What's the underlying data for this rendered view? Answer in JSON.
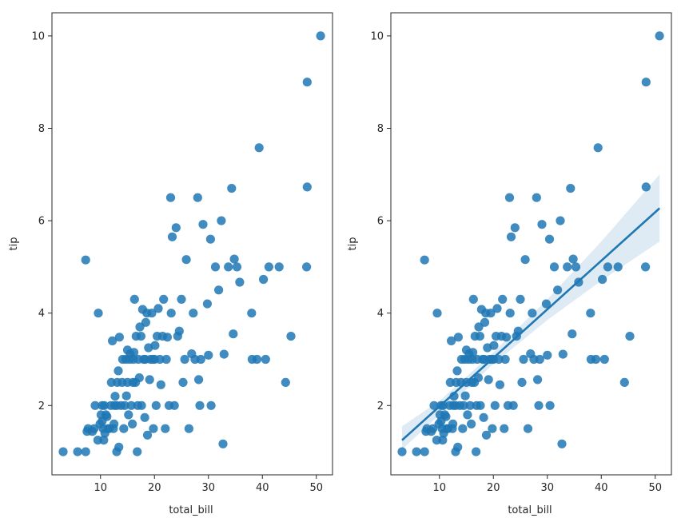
{
  "chart_data": [
    {
      "type": "scatter",
      "name": "left-panel",
      "xlabel": "total_bill",
      "ylabel": "tip",
      "xlim": [
        1.0,
        53.0
      ],
      "ylim": [
        0.5,
        10.5
      ],
      "xticks": [
        "10",
        "20",
        "30",
        "40",
        "50"
      ],
      "yticks": [
        "2",
        "4",
        "6",
        "8",
        "10"
      ],
      "grid": false,
      "regression": false,
      "points": [
        [
          3.07,
          1.0
        ],
        [
          5.75,
          1.0
        ],
        [
          7.25,
          1.0
        ],
        [
          7.25,
          5.15
        ],
        [
          7.5,
          1.44
        ],
        [
          7.7,
          1.5
        ],
        [
          8.5,
          1.44
        ],
        [
          8.8,
          1.5
        ],
        [
          9.0,
          2.0
        ],
        [
          9.5,
          1.25
        ],
        [
          9.6,
          4.0
        ],
        [
          9.9,
          1.6
        ],
        [
          10.1,
          1.8
        ],
        [
          10.3,
          1.66
        ],
        [
          10.3,
          2.0
        ],
        [
          10.5,
          1.5
        ],
        [
          10.6,
          1.25
        ],
        [
          10.7,
          2.0
        ],
        [
          10.8,
          1.4
        ],
        [
          11.0,
          1.8
        ],
        [
          11.2,
          1.76
        ],
        [
          11.4,
          1.5
        ],
        [
          11.6,
          1.5
        ],
        [
          11.9,
          2.0
        ],
        [
          12.0,
          2.5
        ],
        [
          12.2,
          3.4
        ],
        [
          12.4,
          1.5
        ],
        [
          12.5,
          1.6
        ],
        [
          12.6,
          2.0
        ],
        [
          12.7,
          2.2
        ],
        [
          13.0,
          1.0
        ],
        [
          13.0,
          2.0
        ],
        [
          13.1,
          2.5
        ],
        [
          13.3,
          2.75
        ],
        [
          13.4,
          1.1
        ],
        [
          13.5,
          3.48
        ],
        [
          13.8,
          2.0
        ],
        [
          14.0,
          2.5
        ],
        [
          14.1,
          3.0
        ],
        [
          14.3,
          1.5
        ],
        [
          14.5,
          2.0
        ],
        [
          14.7,
          3.0
        ],
        [
          14.8,
          2.21
        ],
        [
          15.0,
          2.5
        ],
        [
          15.0,
          3.2
        ],
        [
          15.2,
          1.8
        ],
        [
          15.4,
          3.0
        ],
        [
          15.5,
          3.12
        ],
        [
          15.7,
          2.0
        ],
        [
          15.9,
          1.6
        ],
        [
          16.0,
          2.5
        ],
        [
          16.1,
          3.0
        ],
        [
          16.2,
          3.15
        ],
        [
          16.3,
          4.3
        ],
        [
          16.5,
          2.5
        ],
        [
          16.6,
          3.5
        ],
        [
          16.8,
          1.0
        ],
        [
          16.9,
          2.0
        ],
        [
          17.0,
          3.0
        ],
        [
          17.2,
          2.6
        ],
        [
          17.3,
          3.7
        ],
        [
          17.5,
          3.5
        ],
        [
          17.6,
          2.0
        ],
        [
          17.8,
          4.08
        ],
        [
          18.0,
          3.0
        ],
        [
          18.2,
          1.74
        ],
        [
          18.3,
          3.0
        ],
        [
          18.4,
          3.8
        ],
        [
          18.6,
          4.0
        ],
        [
          18.7,
          1.36
        ],
        [
          18.9,
          3.25
        ],
        [
          19.1,
          2.56
        ],
        [
          19.3,
          3.0
        ],
        [
          19.5,
          4.0
        ],
        [
          19.7,
          3.0
        ],
        [
          19.8,
          1.5
        ],
        [
          20.0,
          3.0
        ],
        [
          20.1,
          3.3
        ],
        [
          20.3,
          2.0
        ],
        [
          20.5,
          3.5
        ],
        [
          20.7,
          4.1
        ],
        [
          21.0,
          3.0
        ],
        [
          21.2,
          2.45
        ],
        [
          21.5,
          3.5
        ],
        [
          21.7,
          4.3
        ],
        [
          22.0,
          1.5
        ],
        [
          22.2,
          3.0
        ],
        [
          22.4,
          3.48
        ],
        [
          22.7,
          2.0
        ],
        [
          23.0,
          6.5
        ],
        [
          23.1,
          4.0
        ],
        [
          23.3,
          5.65
        ],
        [
          23.7,
          2.0
        ],
        [
          24.0,
          5.85
        ],
        [
          24.3,
          3.5
        ],
        [
          24.6,
          3.61
        ],
        [
          25.0,
          4.3
        ],
        [
          25.3,
          2.5
        ],
        [
          25.6,
          3.0
        ],
        [
          25.9,
          5.16
        ],
        [
          26.4,
          1.5
        ],
        [
          26.9,
          3.12
        ],
        [
          27.2,
          4.0
        ],
        [
          27.5,
          3.0
        ],
        [
          28.0,
          6.5
        ],
        [
          28.2,
          2.56
        ],
        [
          28.4,
          2.0
        ],
        [
          28.6,
          3.0
        ],
        [
          29.0,
          5.92
        ],
        [
          29.8,
          4.2
        ],
        [
          30.0,
          3.09
        ],
        [
          30.4,
          5.6
        ],
        [
          30.5,
          2.0
        ],
        [
          31.3,
          5.0
        ],
        [
          31.9,
          4.5
        ],
        [
          32.4,
          6.0
        ],
        [
          32.7,
          1.17
        ],
        [
          32.9,
          3.11
        ],
        [
          33.7,
          5.0
        ],
        [
          34.3,
          6.7
        ],
        [
          34.6,
          3.55
        ],
        [
          34.8,
          5.17
        ],
        [
          35.3,
          5.0
        ],
        [
          35.8,
          4.67
        ],
        [
          38.0,
          4.0
        ],
        [
          38.1,
          3.0
        ],
        [
          39.0,
          3.0
        ],
        [
          39.4,
          7.58
        ],
        [
          40.2,
          4.73
        ],
        [
          40.6,
          3.0
        ],
        [
          41.2,
          5.0
        ],
        [
          43.1,
          5.0
        ],
        [
          44.3,
          2.5
        ],
        [
          45.3,
          3.5
        ],
        [
          48.2,
          5.0
        ],
        [
          48.3,
          6.73
        ],
        [
          48.3,
          9.0
        ],
        [
          50.8,
          10.0
        ]
      ]
    },
    {
      "type": "scatter",
      "name": "right-panel",
      "xlabel": "total_bill",
      "ylabel": "tip",
      "xlim": [
        1.0,
        53.0
      ],
      "ylim": [
        0.5,
        10.5
      ],
      "xticks": [
        "10",
        "20",
        "30",
        "40",
        "50"
      ],
      "yticks": [
        "2",
        "4",
        "6",
        "8",
        "10"
      ],
      "grid": false,
      "regression": true,
      "fit_line": {
        "x": [
          3.07,
          50.81
        ],
        "y": [
          1.25,
          6.27
        ]
      },
      "ci_band": {
        "x": [
          3.07,
          10,
          20,
          30,
          40,
          50.81
        ],
        "lower": [
          1.05,
          1.8,
          2.9,
          3.85,
          4.7,
          5.55
        ],
        "upper": [
          1.55,
          2.1,
          3.15,
          4.3,
          5.55,
          7.0
        ]
      },
      "points": [
        [
          3.07,
          1.0
        ],
        [
          5.75,
          1.0
        ],
        [
          7.25,
          1.0
        ],
        [
          7.25,
          5.15
        ],
        [
          7.5,
          1.44
        ],
        [
          7.7,
          1.5
        ],
        [
          8.5,
          1.44
        ],
        [
          8.8,
          1.5
        ],
        [
          9.0,
          2.0
        ],
        [
          9.5,
          1.25
        ],
        [
          9.6,
          4.0
        ],
        [
          9.9,
          1.6
        ],
        [
          10.1,
          1.8
        ],
        [
          10.3,
          1.66
        ],
        [
          10.3,
          2.0
        ],
        [
          10.5,
          1.5
        ],
        [
          10.6,
          1.25
        ],
        [
          10.7,
          2.0
        ],
        [
          10.8,
          1.4
        ],
        [
          11.0,
          1.8
        ],
        [
          11.2,
          1.76
        ],
        [
          11.4,
          1.5
        ],
        [
          11.6,
          1.5
        ],
        [
          11.9,
          2.0
        ],
        [
          12.0,
          2.5
        ],
        [
          12.2,
          3.4
        ],
        [
          12.4,
          1.5
        ],
        [
          12.5,
          1.6
        ],
        [
          12.6,
          2.0
        ],
        [
          12.7,
          2.2
        ],
        [
          13.0,
          1.0
        ],
        [
          13.0,
          2.0
        ],
        [
          13.1,
          2.5
        ],
        [
          13.3,
          2.75
        ],
        [
          13.4,
          1.1
        ],
        [
          13.5,
          3.48
        ],
        [
          13.8,
          2.0
        ],
        [
          14.0,
          2.5
        ],
        [
          14.1,
          3.0
        ],
        [
          14.3,
          1.5
        ],
        [
          14.5,
          2.0
        ],
        [
          14.7,
          3.0
        ],
        [
          14.8,
          2.21
        ],
        [
          15.0,
          2.5
        ],
        [
          15.0,
          3.2
        ],
        [
          15.2,
          1.8
        ],
        [
          15.4,
          3.0
        ],
        [
          15.5,
          3.12
        ],
        [
          15.7,
          2.0
        ],
        [
          15.9,
          1.6
        ],
        [
          16.0,
          2.5
        ],
        [
          16.1,
          3.0
        ],
        [
          16.2,
          3.15
        ],
        [
          16.3,
          4.3
        ],
        [
          16.5,
          2.5
        ],
        [
          16.6,
          3.5
        ],
        [
          16.8,
          1.0
        ],
        [
          16.9,
          2.0
        ],
        [
          17.0,
          3.0
        ],
        [
          17.2,
          2.6
        ],
        [
          17.3,
          3.7
        ],
        [
          17.5,
          3.5
        ],
        [
          17.6,
          2.0
        ],
        [
          17.8,
          4.08
        ],
        [
          18.0,
          3.0
        ],
        [
          18.2,
          1.74
        ],
        [
          18.3,
          3.0
        ],
        [
          18.4,
          3.8
        ],
        [
          18.6,
          4.0
        ],
        [
          18.7,
          1.36
        ],
        [
          18.9,
          3.25
        ],
        [
          19.1,
          2.56
        ],
        [
          19.3,
          3.0
        ],
        [
          19.5,
          4.0
        ],
        [
          19.7,
          3.0
        ],
        [
          19.8,
          1.5
        ],
        [
          20.0,
          3.0
        ],
        [
          20.1,
          3.3
        ],
        [
          20.3,
          2.0
        ],
        [
          20.5,
          3.5
        ],
        [
          20.7,
          4.1
        ],
        [
          21.0,
          3.0
        ],
        [
          21.2,
          2.45
        ],
        [
          21.5,
          3.5
        ],
        [
          21.7,
          4.3
        ],
        [
          22.0,
          1.5
        ],
        [
          22.2,
          3.0
        ],
        [
          22.4,
          3.48
        ],
        [
          22.7,
          2.0
        ],
        [
          23.0,
          6.5
        ],
        [
          23.1,
          4.0
        ],
        [
          23.3,
          5.65
        ],
        [
          23.7,
          2.0
        ],
        [
          24.0,
          5.85
        ],
        [
          24.3,
          3.5
        ],
        [
          24.6,
          3.61
        ],
        [
          25.0,
          4.3
        ],
        [
          25.3,
          2.5
        ],
        [
          25.6,
          3.0
        ],
        [
          25.9,
          5.16
        ],
        [
          26.4,
          1.5
        ],
        [
          26.9,
          3.12
        ],
        [
          27.2,
          4.0
        ],
        [
          27.5,
          3.0
        ],
        [
          28.0,
          6.5
        ],
        [
          28.2,
          2.56
        ],
        [
          28.4,
          2.0
        ],
        [
          28.6,
          3.0
        ],
        [
          29.0,
          5.92
        ],
        [
          29.8,
          4.2
        ],
        [
          30.0,
          3.09
        ],
        [
          30.4,
          5.6
        ],
        [
          30.5,
          2.0
        ],
        [
          31.3,
          5.0
        ],
        [
          31.9,
          4.5
        ],
        [
          32.4,
          6.0
        ],
        [
          32.7,
          1.17
        ],
        [
          32.9,
          3.11
        ],
        [
          33.7,
          5.0
        ],
        [
          34.3,
          6.7
        ],
        [
          34.6,
          3.55
        ],
        [
          34.8,
          5.17
        ],
        [
          35.3,
          5.0
        ],
        [
          35.8,
          4.67
        ],
        [
          38.0,
          4.0
        ],
        [
          38.1,
          3.0
        ],
        [
          39.0,
          3.0
        ],
        [
          39.4,
          7.58
        ],
        [
          40.2,
          4.73
        ],
        [
          40.6,
          3.0
        ],
        [
          41.2,
          5.0
        ],
        [
          43.1,
          5.0
        ],
        [
          44.3,
          2.5
        ],
        [
          45.3,
          3.5
        ],
        [
          48.2,
          5.0
        ],
        [
          48.3,
          6.73
        ],
        [
          48.3,
          9.0
        ],
        [
          50.8,
          10.0
        ]
      ]
    }
  ],
  "colors": {
    "point": "#1f77b4",
    "line": "#1f77b4",
    "band": "#1f77b4"
  }
}
